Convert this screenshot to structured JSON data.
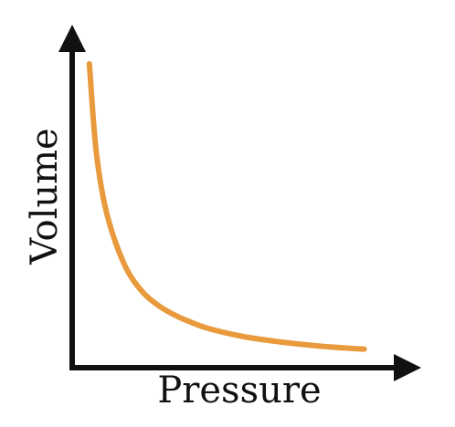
{
  "chart_data": {
    "type": "line",
    "title": "",
    "xlabel": "Pressure",
    "ylabel": "Volume",
    "grid": false,
    "legend": "none",
    "ticks": "none",
    "xlim": [
      0,
      10
    ],
    "ylim": [
      0,
      10
    ],
    "series": [
      {
        "x": [
          0.5,
          0.7,
          1,
          1.5,
          2,
          2.5,
          3,
          3.5,
          4,
          5,
          6,
          7,
          8,
          8.5
        ],
        "y": [
          9,
          6.4,
          4.6,
          3.1,
          2.3,
          1.85,
          1.55,
          1.33,
          1.15,
          0.92,
          0.77,
          0.66,
          0.58,
          0.55
        ]
      }
    ],
    "colors": {
      "curve": "#E89A3C",
      "axes": "#111111"
    }
  }
}
